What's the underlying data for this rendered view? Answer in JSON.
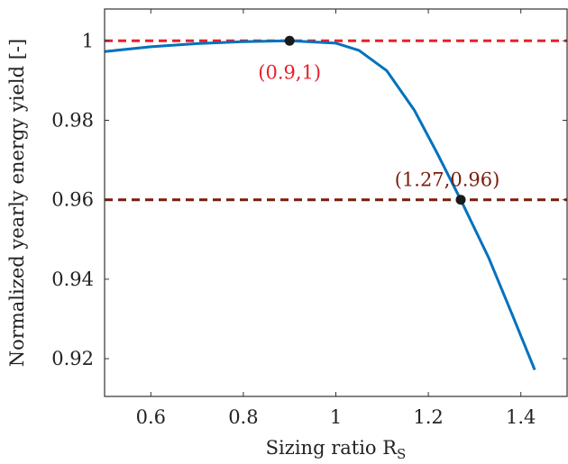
{
  "chart_data": {
    "type": "line",
    "title": "",
    "xlabel": "Sizing ratio R",
    "xlabel_sub": "S",
    "ylabel": "Normalized yearly energy yield [-]",
    "xlim": [
      0.5,
      1.5
    ],
    "ylim": [
      0.9105,
      1.008
    ],
    "xticks": [
      0.6,
      0.8,
      1.0,
      1.2,
      1.4
    ],
    "xtick_labels": [
      "0.6",
      "0.8",
      "1",
      "1.2",
      "1.4"
    ],
    "yticks": [
      0.92,
      0.94,
      0.96,
      0.98,
      1.0
    ],
    "ytick_labels": [
      "0.92",
      "0.94",
      "0.96",
      "0.98",
      "1"
    ],
    "grid": false,
    "series": [
      {
        "color": "#0072bd",
        "x": [
          0.5,
          0.6,
          0.7,
          0.8,
          0.9,
          1.0,
          1.05,
          1.11,
          1.17,
          1.22,
          1.27,
          1.33,
          1.38,
          1.43
        ],
        "y": [
          0.9973,
          0.9985,
          0.9993,
          0.9998,
          1.0,
          0.9994,
          0.9976,
          0.9925,
          0.9825,
          0.9715,
          0.96,
          0.9455,
          0.9315,
          0.9172
        ]
      }
    ],
    "reference_lines": [
      {
        "y": 1.0,
        "color": "#e8202a",
        "style": "dashed"
      },
      {
        "y": 0.96,
        "color": "#7a1c0c",
        "style": "dashed"
      }
    ],
    "annotations": [
      {
        "x": 0.9,
        "y": 1.0,
        "label": "(0.9,1)",
        "color": "#e8202a"
      },
      {
        "x": 1.27,
        "y": 0.96,
        "label": "(1.27,0.96)",
        "color": "#7a1c0c"
      }
    ]
  }
}
